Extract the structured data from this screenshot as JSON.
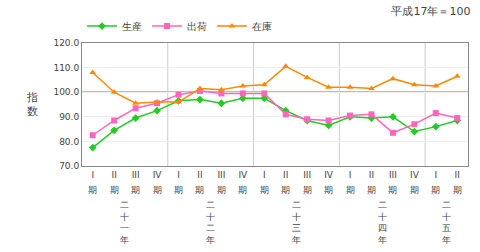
{
  "chart_data": {
    "type": "line",
    "title": "平成17年＝100",
    "y_label": "指\n数",
    "categories": [
      "I",
      "II",
      "III",
      "IV",
      "I",
      "II",
      "III",
      "IV",
      "I",
      "II",
      "III",
      "IV",
      "I",
      "II",
      "III",
      "IV",
      "I",
      "II"
    ],
    "series": [
      {
        "name": "生産",
        "color": "#22cc22",
        "marker": "diamond",
        "values": [
          77.5,
          84.5,
          89.5,
          92.5,
          96.5,
          97.0,
          95.5,
          97.5,
          97.5,
          92.5,
          88.5,
          86.5,
          90.0,
          89.5,
          90.0,
          84.0,
          86.0,
          88.5
        ]
      },
      {
        "name": "出荷",
        "color": "#ff66bb",
        "marker": "square",
        "values": [
          82.5,
          88.5,
          93.5,
          95.5,
          99.0,
          100.5,
          99.5,
          99.5,
          99.5,
          91.0,
          89.0,
          88.5,
          90.5,
          91.0,
          83.5,
          87.0,
          91.5,
          89.5
        ]
      },
      {
        "name": "在庫",
        "color": "#ff8800",
        "marker": "triangle-up",
        "values": [
          108.0,
          100.0,
          95.5,
          96.0,
          96.0,
          101.5,
          101.0,
          102.5,
          103.0,
          110.5,
          106.0,
          102.0,
          102.0,
          101.5,
          105.5,
          103.0,
          102.5,
          106.5
        ]
      }
    ],
    "reference_line": {
      "value": 100.0,
      "color": "#e05050"
    },
    "ylim": [
      70.0,
      120.0
    ],
    "yticks": [
      {
        "value": 70.0,
        "label": "70.0"
      },
      {
        "value": 80.0,
        "label": "80.0"
      },
      {
        "value": 90.0,
        "label": "90.0"
      },
      {
        "value": 100.0,
        "label": "100.0"
      },
      {
        "value": 110.0,
        "label": "110.0"
      },
      {
        "value": 120.0,
        "label": "120.0"
      }
    ],
    "annotations": [
      {
        "text": "期",
        "x": 0
      },
      {
        "text": "期",
        "x": 1
      },
      {
        "text": "期",
        "x": 2
      },
      {
        "text": "期",
        "x": 3
      },
      {
        "text": "期",
        "x": 4
      },
      {
        "text": "期",
        "x": 5
      },
      {
        "text": "期",
        "x": 6
      },
      {
        "text": "期",
        "x": 7
      },
      {
        "text": "期",
        "x": 8
      },
      {
        "text": "期",
        "x": 9
      },
      {
        "text": "期",
        "x": 10
      },
      {
        "text": "期",
        "x": 11
      },
      {
        "text": "期",
        "x": 12
      },
      {
        "text": "期",
        "x": 13
      },
      {
        "text": "期",
        "x": 14
      },
      {
        "text": "期",
        "x": 15
      },
      {
        "text": "期",
        "x": 16
      },
      {
        "text": "期",
        "x": 17
      },
      {
        "text": "二\n十\n一\n年",
        "x": 1.5
      },
      {
        "text": "二\n十\n二\n年",
        "x": 5.5
      },
      {
        "text": "二\n十\n三\n年",
        "x": 9.5
      },
      {
        "text": "二\n十\n四\n年",
        "x": 13.5
      },
      {
        "text": "二\n十\n五\n年",
        "x": 16.5
      }
    ],
    "grid": "y",
    "legend": "top"
  }
}
